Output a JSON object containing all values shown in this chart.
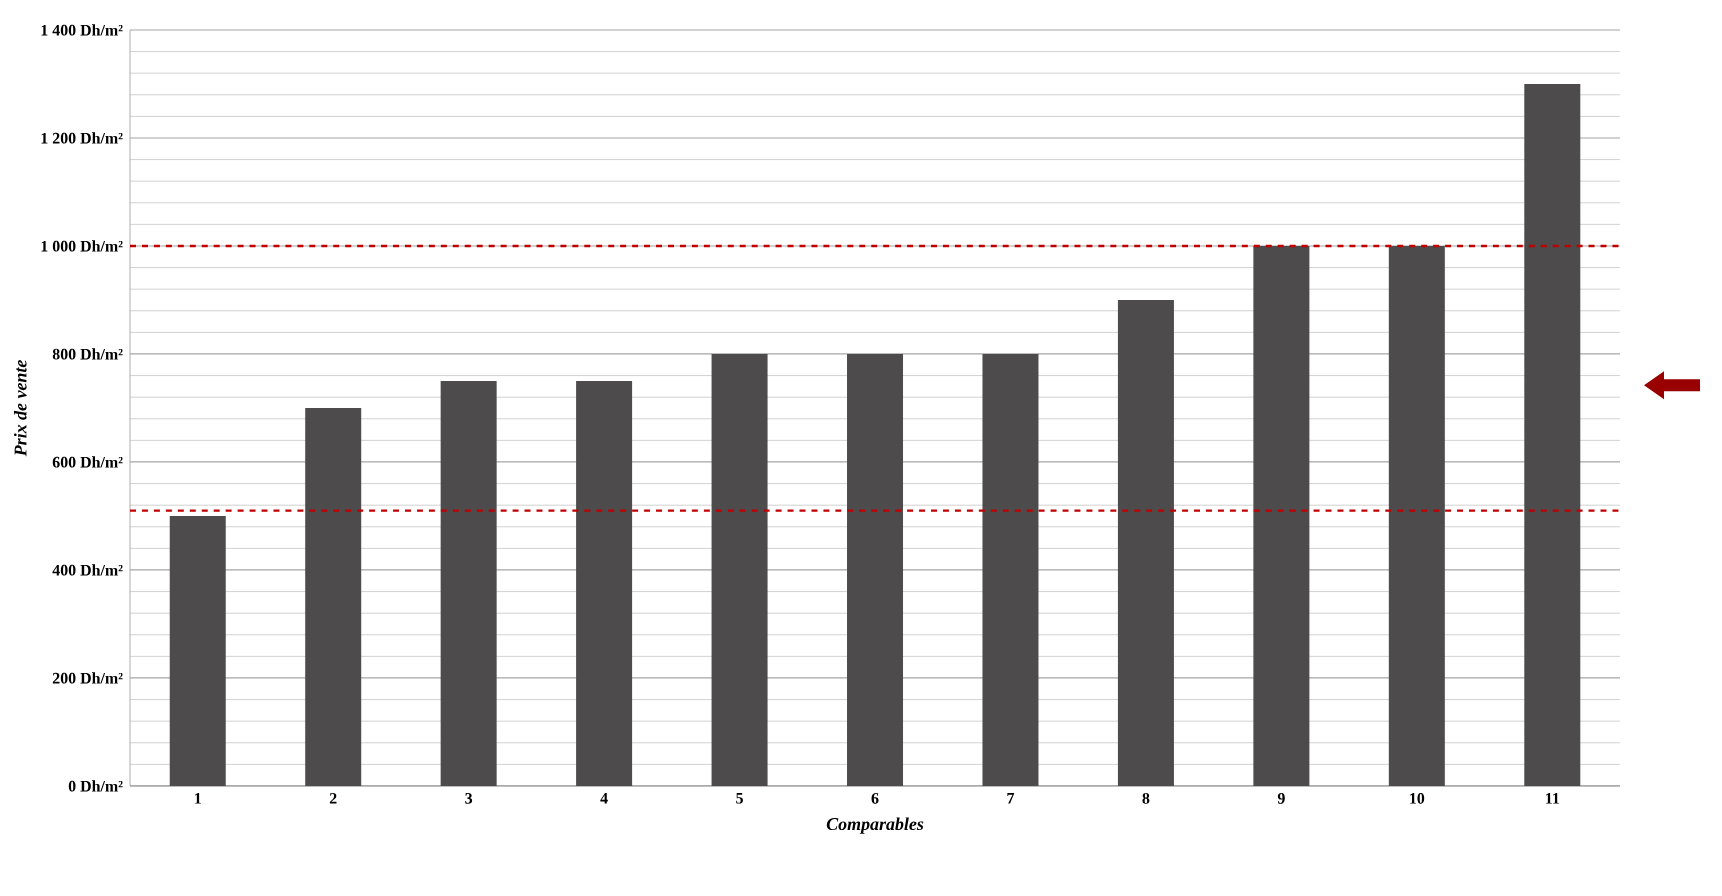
{
  "chart_data": {
    "type": "bar",
    "xlabel": "Comparables",
    "ylabel": "Prix de vente",
    "categories": [
      "1",
      "2",
      "3",
      "4",
      "5",
      "6",
      "7",
      "8",
      "9",
      "10",
      "11"
    ],
    "values": [
      500,
      700,
      750,
      750,
      800,
      800,
      800,
      900,
      1000,
      1000,
      1300
    ],
    "color": "#4d4b4c",
    "ylim": [
      0,
      1400
    ],
    "yticks": [
      {
        "value": 0,
        "label": "0 Dh/m²"
      },
      {
        "value": 200,
        "label": "200 Dh/m²"
      },
      {
        "value": 400,
        "label": "400 Dh/m²"
      },
      {
        "value": 600,
        "label": "600 Dh/m²"
      },
      {
        "value": 800,
        "label": "800 Dh/m²"
      },
      {
        "value": 1000,
        "label": "1 000 Dh/m²"
      },
      {
        "value": 1200,
        "label": "1 200 Dh/m²"
      },
      {
        "value": 1400,
        "label": "1 400 Dh/m²"
      }
    ],
    "grid": "y",
    "ref_lines": [
      {
        "axis": "y",
        "value": 1000,
        "color": "#c00000",
        "line_style": "dashed"
      },
      {
        "axis": "y",
        "value": 510,
        "color": "#c00000",
        "line_style": "dashed"
      }
    ]
  }
}
